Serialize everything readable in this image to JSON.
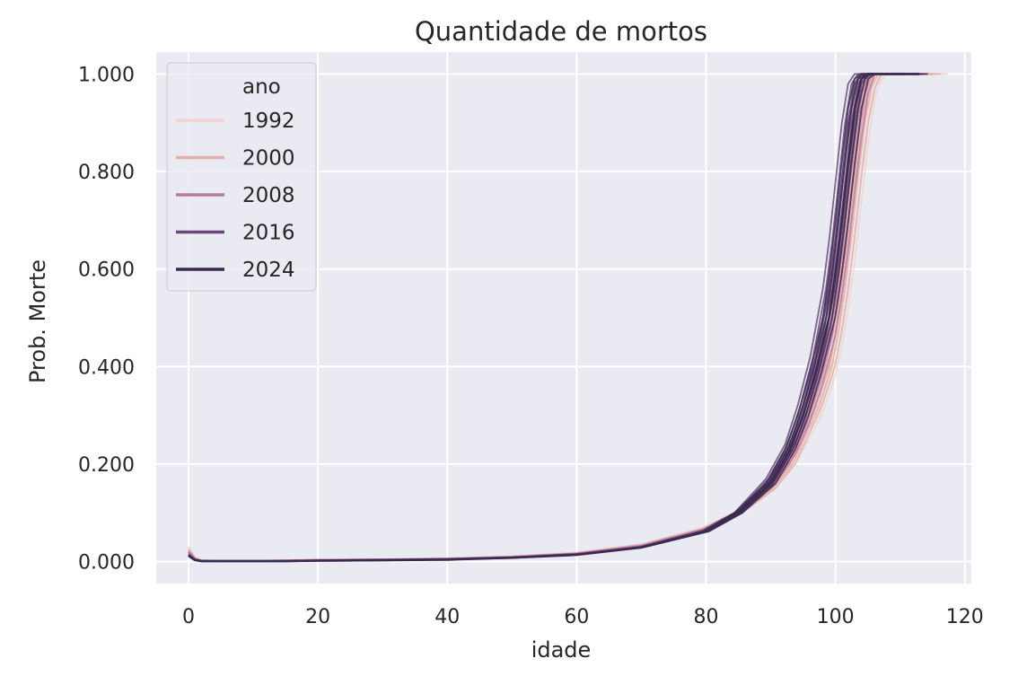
{
  "chart_data": {
    "type": "line",
    "title": "Quantidade de mortos",
    "xlabel": "idade",
    "ylabel": "Prob. Morte",
    "xlim": [
      -5,
      121
    ],
    "ylim": [
      -0.045,
      1.045
    ],
    "xticks": [
      0,
      20,
      40,
      60,
      80,
      100,
      120
    ],
    "xtick_labels": [
      "0",
      "20",
      "40",
      "60",
      "80",
      "100",
      "120"
    ],
    "yticks": [
      0,
      0.2,
      0.4,
      0.6,
      0.8,
      1.0
    ],
    "ytick_labels": [
      "0.000",
      "0.200",
      "0.400",
      "0.600",
      "0.800",
      "1.000"
    ],
    "grid": true,
    "legend": {
      "title": "ano",
      "position": "top-left",
      "entries": [
        {
          "label": "1992",
          "color": "#f1d5cf"
        },
        {
          "label": "2000",
          "color": "#e3b0ab"
        },
        {
          "label": "2008",
          "color": "#b97aa6"
        },
        {
          "label": "2016",
          "color": "#6a4a7a"
        },
        {
          "label": "2024",
          "color": "#3b2a50"
        }
      ]
    },
    "series": [
      {
        "name": "1992",
        "color": "#f1d5cf",
        "steep_age": 106.8,
        "end_age": 116,
        "x": [
          0,
          1,
          2,
          5,
          10,
          15,
          20,
          30,
          40,
          50,
          60,
          70,
          80,
          85,
          90,
          93,
          95,
          97,
          99,
          100,
          101,
          102,
          103,
          104,
          105,
          106,
          107,
          108,
          110,
          116
        ],
        "y": [
          0.03,
          0.008,
          0.002,
          0.001,
          0.001,
          0.002,
          0.003,
          0.004,
          0.006,
          0.01,
          0.018,
          0.035,
          0.07,
          0.1,
          0.15,
          0.2,
          0.25,
          0.3,
          0.38,
          0.44,
          0.52,
          0.62,
          0.74,
          0.86,
          0.95,
          0.99,
          1.0,
          1.0,
          1.0,
          1.0
        ]
      },
      {
        "name": "2000",
        "color": "#e3b0ab",
        "steep_age": 106.2,
        "end_age": 115,
        "x": [
          0,
          1,
          2,
          5,
          10,
          15,
          20,
          30,
          40,
          50,
          60,
          70,
          80,
          85,
          90,
          93,
          95,
          97,
          99,
          100,
          101,
          102,
          103,
          104,
          105,
          106,
          107,
          108,
          110,
          115
        ],
        "y": [
          0.025,
          0.006,
          0.002,
          0.001,
          0.001,
          0.002,
          0.003,
          0.004,
          0.006,
          0.01,
          0.017,
          0.034,
          0.068,
          0.1,
          0.15,
          0.2,
          0.26,
          0.32,
          0.4,
          0.47,
          0.56,
          0.67,
          0.79,
          0.9,
          0.97,
          1.0,
          1.0,
          1.0,
          1.0,
          1.0
        ]
      },
      {
        "name": "2008",
        "color": "#b97aa6",
        "steep_age": 105.5,
        "end_age": 113,
        "x": [
          0,
          1,
          2,
          5,
          10,
          15,
          20,
          30,
          40,
          50,
          60,
          70,
          80,
          85,
          90,
          93,
          95,
          97,
          99,
          100,
          101,
          102,
          103,
          104,
          105,
          106,
          107,
          108,
          110,
          113
        ],
        "y": [
          0.02,
          0.005,
          0.002,
          0.001,
          0.001,
          0.002,
          0.003,
          0.004,
          0.005,
          0.009,
          0.016,
          0.032,
          0.066,
          0.1,
          0.16,
          0.22,
          0.28,
          0.36,
          0.46,
          0.54,
          0.64,
          0.76,
          0.87,
          0.96,
          1.0,
          1.0,
          1.0,
          1.0,
          1.0,
          1.0
        ]
      },
      {
        "name": "2016",
        "color": "#6a4a7a",
        "steep_age": 103.8,
        "end_age": 111,
        "x": [
          0,
          1,
          2,
          5,
          10,
          15,
          20,
          30,
          40,
          50,
          60,
          70,
          80,
          85,
          90,
          93,
          95,
          97,
          99,
          100,
          101,
          102,
          103,
          104,
          105,
          106,
          107,
          108,
          110,
          111
        ],
        "y": [
          0.015,
          0.004,
          0.001,
          0.001,
          0.001,
          0.001,
          0.002,
          0.003,
          0.005,
          0.008,
          0.015,
          0.03,
          0.064,
          0.1,
          0.17,
          0.24,
          0.32,
          0.42,
          0.56,
          0.66,
          0.78,
          0.9,
          0.98,
          1.0,
          1.0,
          1.0,
          1.0,
          1.0,
          1.0,
          1.0
        ]
      },
      {
        "name": "2024",
        "color": "#3b2a50",
        "steep_age": 105.0,
        "end_age": 113,
        "x": [
          0,
          1,
          2,
          5,
          10,
          15,
          20,
          30,
          40,
          50,
          60,
          70,
          80,
          85,
          90,
          93,
          95,
          97,
          99,
          100,
          101,
          102,
          103,
          104,
          105,
          106,
          107,
          108,
          110,
          113
        ],
        "y": [
          0.012,
          0.003,
          0.001,
          0.001,
          0.001,
          0.001,
          0.002,
          0.003,
          0.004,
          0.008,
          0.014,
          0.029,
          0.062,
          0.1,
          0.16,
          0.23,
          0.3,
          0.39,
          0.5,
          0.59,
          0.7,
          0.82,
          0.93,
          0.99,
          1.0,
          1.0,
          1.0,
          1.0,
          1.0,
          1.0
        ]
      }
    ]
  }
}
